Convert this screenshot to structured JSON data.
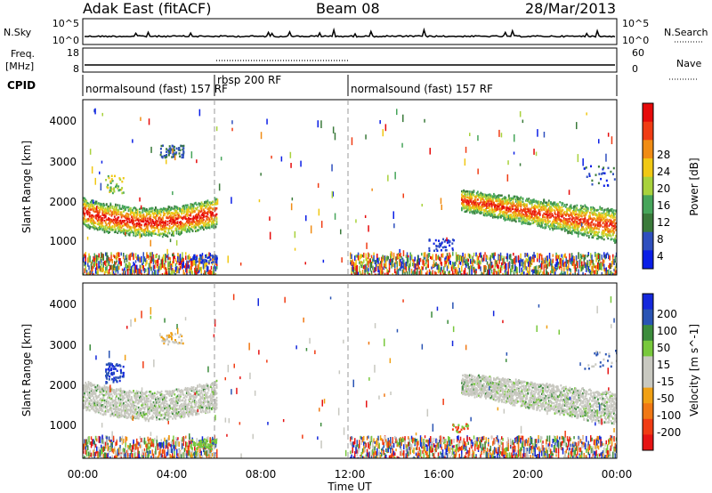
{
  "header": {
    "station": "Adak East (fitACF)",
    "beam": "Beam 08",
    "date": "28/Mar/2013"
  },
  "noise_panel": {
    "left_label": "N.Sky",
    "left_ticks": [
      "10^5",
      "10^0"
    ],
    "right_ticks": [
      "10^5",
      "10^0"
    ],
    "right_label": "N.Search"
  },
  "freq_panel": {
    "left_label_top": "Freq.",
    "left_label_unit": "[MHz]",
    "left_ticks": [
      "18",
      "8"
    ],
    "right_ticks": [
      "60",
      "0"
    ],
    "right_label": "Nave"
  },
  "cpid_panel": {
    "label": "CPID",
    "segments": [
      {
        "name": "normalsound (fast) 157 RF",
        "start": 0,
        "end": 6
      },
      {
        "name": "rbsp 200 RF",
        "start": 6,
        "end": 12
      },
      {
        "name": "normalsound (fast) 157 RF",
        "start": 12,
        "end": 24
      }
    ]
  },
  "colors": {
    "power": [
      "#0a1ee6",
      "#2f4fbe",
      "#3a7a3a",
      "#46a55a",
      "#a8d23c",
      "#f0c814",
      "#f08c14",
      "#f03c14",
      "#e60a0a"
    ],
    "velocity": [
      "#1428dc",
      "#2a54b4",
      "#3c8c3c",
      "#78c83c",
      "#c8c8c0",
      "#c8c8c0",
      "#f0a014",
      "#f07814",
      "#f03c14",
      "#e61414"
    ]
  },
  "chart_data": [
    {
      "type": "heatmap",
      "title": "",
      "xlabel": "Time UT",
      "ylabel": "Slant Range [km]",
      "x_range": [
        "00:00",
        "24:00"
      ],
      "x_ticks": [
        "00:00",
        "04:00",
        "08:00",
        "12:00",
        "16:00",
        "20:00",
        "00:00"
      ],
      "y_range": [
        180,
        4500
      ],
      "y_ticks": [
        "1000",
        "2000",
        "3000",
        "4000"
      ],
      "colorbar": {
        "label": "Power [dB]",
        "ticks": [
          "4",
          "8",
          "12",
          "16",
          "20",
          "24",
          "28"
        ],
        "range": [
          0,
          30
        ]
      },
      "features": [
        {
          "time_start": 0.0,
          "time_end": 6.0,
          "range_min": 1400,
          "range_max": 2100,
          "value": "8-30 dB"
        },
        {
          "time_start": 17.0,
          "time_end": 24.0,
          "range_min": 1000,
          "range_max": 2300,
          "value": "8-30 dB"
        },
        {
          "time_start": 0.0,
          "time_end": 6.0,
          "range_min": 180,
          "range_max": 800,
          "value": "scattered"
        },
        {
          "time_start": 12.0,
          "time_end": 24.0,
          "range_min": 180,
          "range_max": 500,
          "value": "scattered"
        }
      ]
    },
    {
      "type": "heatmap",
      "title": "",
      "xlabel": "Time UT",
      "ylabel": "Slant Range [km]",
      "x_range": [
        "00:00",
        "24:00"
      ],
      "x_ticks": [
        "00:00",
        "04:00",
        "08:00",
        "12:00",
        "16:00",
        "20:00",
        "00:00"
      ],
      "y_range": [
        180,
        4500
      ],
      "y_ticks": [
        "1000",
        "2000",
        "3000",
        "4000"
      ],
      "colorbar": {
        "label": "Velocity [m s^-1]",
        "ticks": [
          "200",
          "100",
          "50",
          "15",
          "-15",
          "-50",
          "-100",
          "-200"
        ],
        "range": [
          -250,
          250
        ]
      },
      "features": [
        {
          "time_start": 0.0,
          "time_end": 6.0,
          "range_min": 1400,
          "range_max": 2100,
          "value": "ground scatter (-15 to 15)"
        },
        {
          "time_start": 17.0,
          "time_end": 24.0,
          "range_min": 1100,
          "range_max": 2200,
          "value": "ground scatter (-15 to 15)"
        },
        {
          "time_start": 1.0,
          "time_end": 1.8,
          "range_min": 2000,
          "range_max": 2600,
          "value": "+200"
        },
        {
          "time_start": 4.8,
          "time_end": 6.0,
          "range_min": 400,
          "range_max": 700,
          "value": "+50"
        }
      ]
    }
  ]
}
